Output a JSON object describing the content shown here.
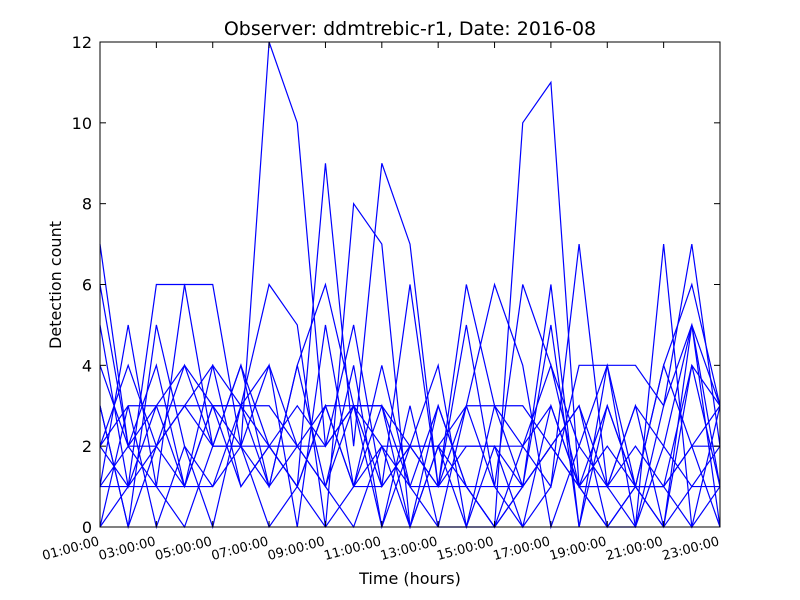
{
  "chart_data": {
    "type": "line",
    "title": "Observer: ddmtrebic-r1, Date: 2016-08",
    "xlabel": "Time (hours)",
    "ylabel": "Detection count",
    "x": [
      1,
      2,
      3,
      4,
      5,
      6,
      7,
      8,
      9,
      10,
      11,
      12,
      13,
      14,
      15,
      16,
      17,
      18,
      19,
      20,
      21,
      22,
      23
    ],
    "xlim": [
      1,
      23
    ],
    "xticks": [
      {
        "value": 1,
        "label": "01:00:00"
      },
      {
        "value": 3,
        "label": "03:00:00"
      },
      {
        "value": 5,
        "label": "05:00:00"
      },
      {
        "value": 7,
        "label": "07:00:00"
      },
      {
        "value": 9,
        "label": "09:00:00"
      },
      {
        "value": 11,
        "label": "11:00:00"
      },
      {
        "value": 13,
        "label": "13:00:00"
      },
      {
        "value": 15,
        "label": "15:00:00"
      },
      {
        "value": 17,
        "label": "17:00:00"
      },
      {
        "value": 19,
        "label": "19:00:00"
      },
      {
        "value": 21,
        "label": "21:00:00"
      },
      {
        "value": 23,
        "label": "23:00:00"
      }
    ],
    "ylim": [
      0,
      12
    ],
    "yticks": [
      0,
      2,
      4,
      6,
      8,
      10,
      12
    ],
    "series": [
      {
        "color": "#0000ff",
        "values": [
          7,
          2,
          3,
          3,
          2,
          2,
          12,
          10,
          2,
          3,
          3,
          1,
          3,
          1,
          0,
          1,
          2,
          3,
          0,
          1,
          1,
          2,
          3
        ]
      },
      {
        "color": "#0000ff",
        "values": [
          2,
          1,
          6,
          6,
          2,
          2,
          2,
          1,
          9,
          2,
          9,
          7,
          1,
          1,
          0,
          10,
          11,
          1,
          2,
          1,
          0,
          4,
          3
        ]
      },
      {
        "color": "#0000ff",
        "values": [
          6,
          2,
          4,
          1,
          4,
          3,
          6,
          5,
          0,
          8,
          7,
          0,
          2,
          0,
          3,
          1,
          6,
          0,
          4,
          0,
          7,
          0,
          1
        ]
      },
      {
        "color": "#0000ff",
        "values": [
          1,
          5,
          1,
          6,
          6,
          2,
          1,
          4,
          6,
          3,
          1,
          6,
          1,
          6,
          3,
          2,
          1,
          7,
          1,
          3,
          0,
          5,
          3
        ]
      },
      {
        "color": "#0000ff",
        "values": [
          3,
          0,
          5,
          2,
          0,
          3,
          4,
          2,
          2,
          5,
          1,
          2,
          1,
          5,
          1,
          6,
          4,
          2,
          4,
          1,
          4,
          2,
          0
        ]
      },
      {
        "color": "#0000ff",
        "values": [
          2,
          3,
          3,
          1,
          3,
          3,
          3,
          2,
          3,
          3,
          3,
          2,
          2,
          2,
          2,
          0,
          1,
          4,
          4,
          4,
          3,
          7,
          2
        ]
      },
      {
        "color": "#0000ff",
        "values": [
          0,
          1,
          2,
          4,
          2,
          4,
          1,
          2,
          1,
          4,
          0,
          3,
          0,
          3,
          6,
          4,
          0,
          2,
          1,
          0,
          2,
          1,
          2
        ]
      },
      {
        "color": "#0000ff",
        "values": [
          4,
          2,
          1,
          1,
          1,
          3,
          2,
          1,
          3,
          1,
          2,
          0,
          3,
          1,
          0,
          2,
          3,
          1,
          0,
          1,
          4,
          6,
          3
        ]
      },
      {
        "color": "#0000ff",
        "values": [
          5,
          1,
          3,
          4,
          3,
          2,
          4,
          0,
          5,
          1,
          4,
          1,
          0,
          0,
          2,
          1,
          5,
          0,
          3,
          1,
          1,
          4,
          1
        ]
      },
      {
        "color": "#0000ff",
        "values": [
          1,
          2,
          2,
          1,
          3,
          3,
          1,
          4,
          1,
          0,
          2,
          1,
          1,
          3,
          3,
          3,
          2,
          1,
          0,
          0,
          3,
          5,
          1
        ]
      },
      {
        "color": "#0000ff",
        "values": [
          2,
          4,
          2,
          3,
          4,
          1,
          2,
          3,
          2,
          3,
          0,
          2,
          4,
          0,
          0,
          1,
          2,
          3,
          1,
          3,
          2,
          5,
          0
        ]
      },
      {
        "color": "#0000ff",
        "values": [
          0,
          3,
          0,
          2,
          1,
          2,
          0,
          1,
          0,
          1,
          3,
          0,
          2,
          1,
          1,
          0,
          3,
          1,
          3,
          1,
          1,
          2,
          2
        ]
      },
      {
        "color": "#0000ff",
        "values": [
          1,
          1,
          1,
          0,
          2,
          4,
          2,
          1,
          3,
          1,
          1,
          2,
          2,
          3,
          1,
          1,
          2,
          1,
          1,
          1,
          0,
          1,
          1
        ]
      },
      {
        "color": "#0000ff",
        "values": [
          3,
          0,
          2,
          3,
          3,
          1,
          2,
          2,
          1,
          3,
          2,
          2,
          1,
          2,
          2,
          2,
          4,
          1,
          1,
          2,
          1,
          0,
          3
        ]
      }
    ]
  }
}
